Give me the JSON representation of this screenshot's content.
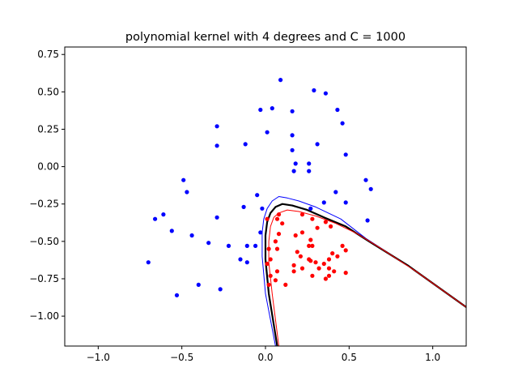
{
  "chart_data": {
    "type": "scatter",
    "title": "polynomial kernel with 4 degrees and C = 1000",
    "xlabel": "",
    "ylabel": "",
    "xlim": [
      -1.2,
      1.2
    ],
    "ylim": [
      -1.2,
      0.8
    ],
    "xticks": [
      -1.0,
      -0.5,
      0.0,
      0.5,
      1.0
    ],
    "xtick_labels": [
      "−1.0",
      "−0.5",
      "0.0",
      "0.5",
      "1.0"
    ],
    "yticks": [
      0.75,
      0.5,
      0.25,
      0.0,
      -0.25,
      -0.5,
      -0.75,
      -1.0
    ],
    "ytick_labels": [
      "0.75",
      "0.50",
      "0.25",
      "0.00",
      "−0.25",
      "−0.50",
      "−0.75",
      "−1.00"
    ],
    "grid": false,
    "colors": {
      "class_blue": "#0000ff",
      "class_red": "#ff0000",
      "decision_boundary": "#000000",
      "margin_blue": "#0000ff",
      "margin_red": "#ff0000"
    },
    "series": [
      {
        "color": "#0000ff",
        "points": [
          [
            0.09,
            0.58
          ],
          [
            0.29,
            0.51
          ],
          [
            0.36,
            0.49
          ],
          [
            -0.03,
            0.38
          ],
          [
            0.04,
            0.39
          ],
          [
            0.16,
            0.37
          ],
          [
            0.43,
            0.38
          ],
          [
            0.46,
            0.29
          ],
          [
            -0.29,
            0.27
          ],
          [
            0.01,
            0.23
          ],
          [
            0.16,
            0.21
          ],
          [
            -0.29,
            0.14
          ],
          [
            -0.12,
            0.15
          ],
          [
            0.31,
            0.15
          ],
          [
            0.16,
            0.11
          ],
          [
            0.48,
            0.08
          ],
          [
            0.18,
            0.02
          ],
          [
            0.26,
            0.02
          ],
          [
            0.26,
            -0.03
          ],
          [
            0.17,
            -0.03
          ],
          [
            -0.49,
            -0.09
          ],
          [
            0.6,
            -0.09
          ],
          [
            -0.47,
            -0.17
          ],
          [
            0.63,
            -0.15
          ],
          [
            -0.05,
            -0.19
          ],
          [
            0.42,
            -0.17
          ],
          [
            0.35,
            -0.24
          ],
          [
            0.48,
            -0.24
          ],
          [
            -0.13,
            -0.27
          ],
          [
            0.27,
            -0.28
          ],
          [
            -0.02,
            -0.28
          ],
          [
            -0.61,
            -0.32
          ],
          [
            -0.66,
            -0.35
          ],
          [
            -0.29,
            -0.34
          ],
          [
            0.61,
            -0.36
          ],
          [
            -0.56,
            -0.43
          ],
          [
            -0.44,
            -0.46
          ],
          [
            -0.03,
            -0.44
          ],
          [
            -0.34,
            -0.51
          ],
          [
            -0.22,
            -0.53
          ],
          [
            -0.11,
            -0.53
          ],
          [
            -0.06,
            -0.53
          ],
          [
            -0.15,
            -0.62
          ],
          [
            -0.11,
            -0.64
          ],
          [
            -0.7,
            -0.64
          ],
          [
            -0.4,
            -0.79
          ],
          [
            -0.27,
            -0.82
          ],
          [
            -0.53,
            -0.86
          ]
        ]
      },
      {
        "color": "#ff0000",
        "points": [
          [
            0.08,
            -0.32
          ],
          [
            0.22,
            -0.32
          ],
          [
            0.28,
            -0.35
          ],
          [
            0.07,
            -0.35
          ],
          [
            0.1,
            -0.38
          ],
          [
            0.01,
            -0.35
          ],
          [
            0.36,
            -0.37
          ],
          [
            0.31,
            -0.41
          ],
          [
            0.39,
            -0.4
          ],
          [
            0.22,
            -0.44
          ],
          [
            0.18,
            -0.46
          ],
          [
            0.08,
            -0.45
          ],
          [
            0.27,
            -0.49
          ],
          [
            0.06,
            -0.5
          ],
          [
            0.02,
            -0.55
          ],
          [
            0.07,
            -0.55
          ],
          [
            0.26,
            -0.53
          ],
          [
            0.28,
            -0.53
          ],
          [
            0.46,
            -0.53
          ],
          [
            0.48,
            -0.56
          ],
          [
            0.03,
            -0.62
          ],
          [
            0.19,
            -0.57
          ],
          [
            0.4,
            -0.58
          ],
          [
            0.43,
            -0.6
          ],
          [
            0.21,
            -0.6
          ],
          [
            0.26,
            -0.62
          ],
          [
            0.38,
            -0.62
          ],
          [
            0.27,
            -0.63
          ],
          [
            0.3,
            -0.64
          ],
          [
            0.01,
            -0.65
          ],
          [
            0.17,
            -0.66
          ],
          [
            0.35,
            -0.65
          ],
          [
            0.22,
            -0.68
          ],
          [
            0.38,
            -0.68
          ],
          [
            0.32,
            -0.68
          ],
          [
            0.17,
            -0.7
          ],
          [
            0.07,
            -0.7
          ],
          [
            0.41,
            -0.7
          ],
          [
            0.48,
            -0.71
          ],
          [
            0.03,
            -0.73
          ],
          [
            0.28,
            -0.73
          ],
          [
            0.38,
            -0.73
          ],
          [
            0.36,
            -0.75
          ],
          [
            0.06,
            -0.76
          ],
          [
            0.02,
            -0.79
          ],
          [
            0.12,
            -0.79
          ]
        ]
      }
    ],
    "lines": [
      {
        "color": "#0000ff",
        "width": 1,
        "points": [
          [
            0.06,
            -1.2
          ],
          [
            0.0,
            -0.85
          ],
          [
            -0.02,
            -0.6
          ],
          [
            -0.02,
            -0.44
          ],
          [
            -0.01,
            -0.35
          ],
          [
            0.01,
            -0.28
          ],
          [
            0.04,
            -0.23
          ],
          [
            0.08,
            -0.2
          ],
          [
            0.13,
            -0.21
          ],
          [
            0.2,
            -0.23
          ],
          [
            0.3,
            -0.27
          ],
          [
            0.45,
            -0.35
          ],
          [
            0.6,
            -0.48
          ],
          [
            0.85,
            -0.66
          ],
          [
            1.2,
            -0.94
          ]
        ]
      },
      {
        "color": "#000000",
        "width": 2.2,
        "points": [
          [
            0.07,
            -1.2
          ],
          [
            0.02,
            -0.85
          ],
          [
            0.0,
            -0.62
          ],
          [
            0.0,
            -0.46
          ],
          [
            0.01,
            -0.37
          ],
          [
            0.03,
            -0.31
          ],
          [
            0.06,
            -0.27
          ],
          [
            0.1,
            -0.25
          ],
          [
            0.16,
            -0.26
          ],
          [
            0.25,
            -0.29
          ],
          [
            0.35,
            -0.34
          ],
          [
            0.48,
            -0.4
          ],
          [
            0.62,
            -0.5
          ],
          [
            0.85,
            -0.66
          ],
          [
            1.2,
            -0.94
          ]
        ]
      },
      {
        "color": "#ff0000",
        "width": 1,
        "points": [
          [
            0.08,
            -1.2
          ],
          [
            0.04,
            -0.85
          ],
          [
            0.02,
            -0.64
          ],
          [
            0.02,
            -0.5
          ],
          [
            0.03,
            -0.4
          ],
          [
            0.05,
            -0.34
          ],
          [
            0.08,
            -0.31
          ],
          [
            0.13,
            -0.29
          ],
          [
            0.2,
            -0.3
          ],
          [
            0.3,
            -0.33
          ],
          [
            0.42,
            -0.38
          ],
          [
            0.55,
            -0.45
          ],
          [
            0.68,
            -0.54
          ],
          [
            0.9,
            -0.7
          ],
          [
            1.2,
            -0.94
          ]
        ]
      }
    ]
  }
}
